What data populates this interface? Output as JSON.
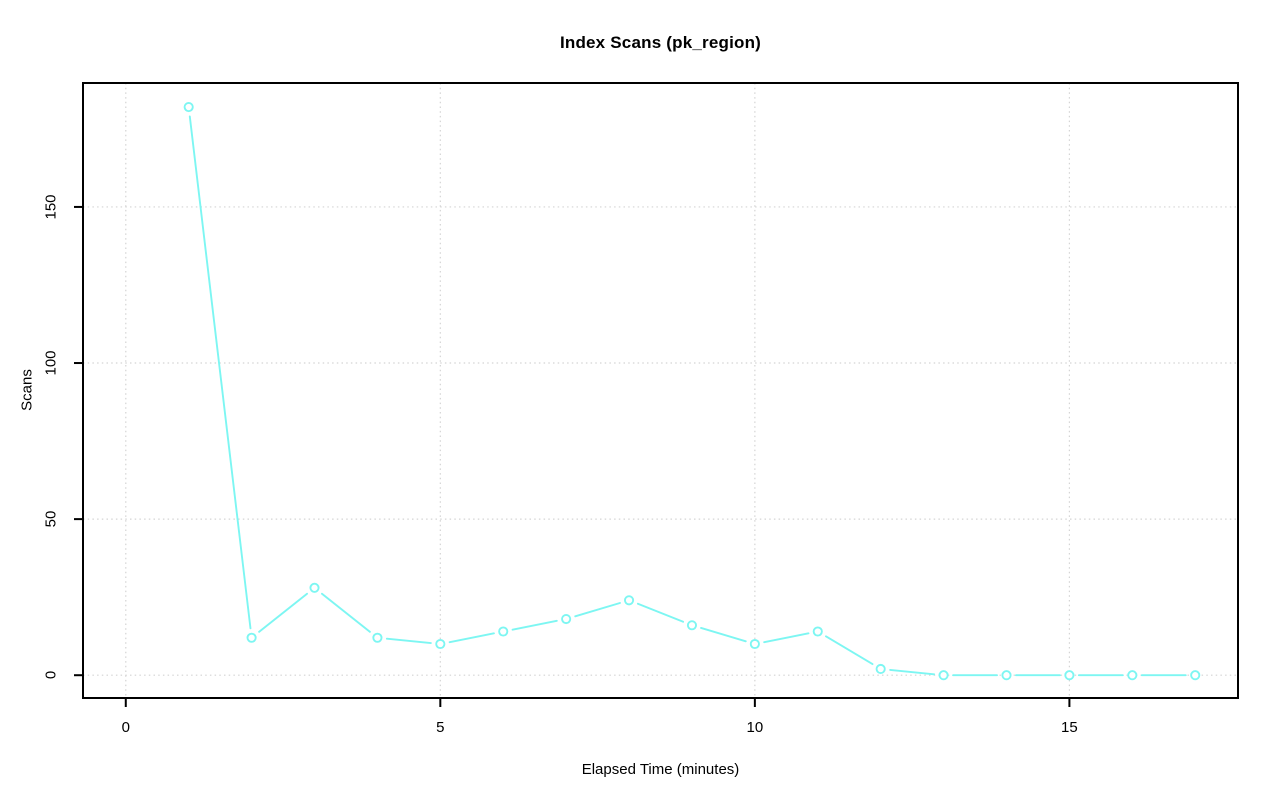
{
  "chart_data": {
    "type": "line",
    "title": "Index Scans (pk_region)",
    "xlabel": "Elapsed Time (minutes)",
    "ylabel": "Scans",
    "x": [
      1,
      2,
      3,
      4,
      5,
      6,
      7,
      8,
      9,
      10,
      11,
      12,
      13,
      14,
      15,
      16,
      17
    ],
    "values": [
      182,
      12,
      28,
      12,
      10,
      14,
      18,
      24,
      16,
      10,
      14,
      2,
      0,
      0,
      0,
      0,
      0
    ],
    "x_ticks": [
      0,
      5,
      10,
      15
    ],
    "y_ticks": [
      0,
      50,
      100,
      150
    ],
    "xlim": [
      -0.68,
      17.68
    ],
    "ylim": [
      -7.3,
      189.7
    ],
    "grid": true,
    "grid_style": "dotted",
    "legend": "none",
    "marker": "open-circle",
    "colors": {
      "series": "#7DF6F2",
      "grid": "#D4D4D4",
      "axis": "#000000",
      "background": "#FFFFFF"
    }
  }
}
